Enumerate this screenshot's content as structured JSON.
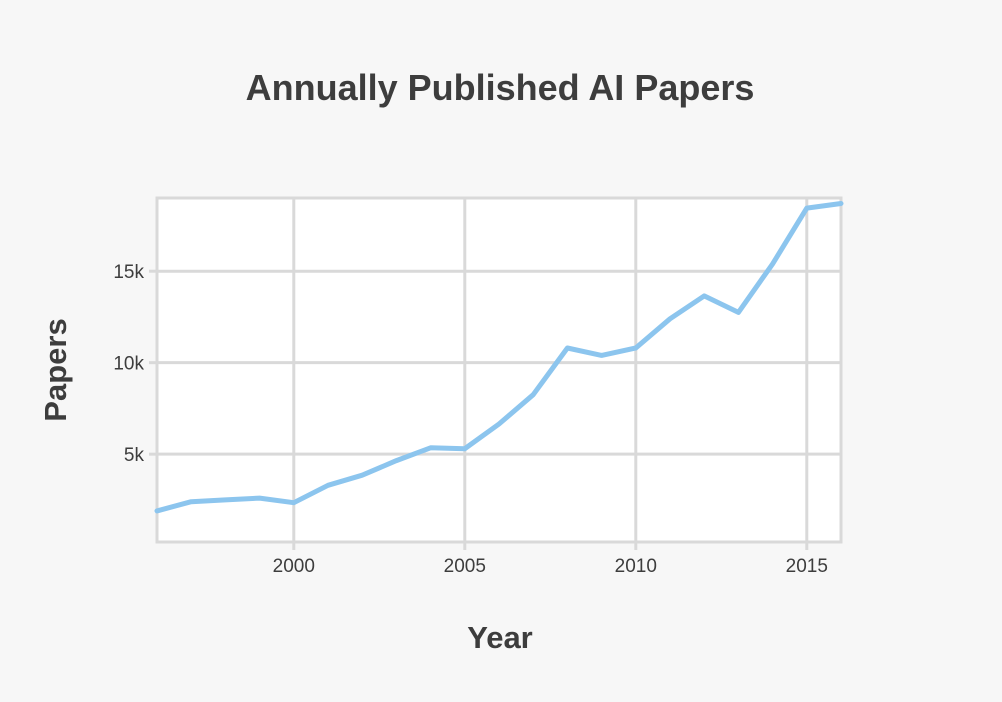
{
  "chart_data": {
    "type": "line",
    "title": "Annually Published AI Papers",
    "xlabel": "Year",
    "ylabel": "Papers",
    "xlim": [
      1996,
      2016
    ],
    "ylim": [
      200,
      19000
    ],
    "x_ticks": [
      2000,
      2005,
      2010,
      2015
    ],
    "x_tick_labels": [
      "2000",
      "2005",
      "2010",
      "2015"
    ],
    "y_ticks": [
      5000,
      10000,
      15000
    ],
    "y_tick_labels": [
      "5k",
      "10k",
      "15k"
    ],
    "grid": true,
    "legend": false,
    "line_color": "#8cc5ee",
    "series": [
      {
        "x": [
          1996,
          1997,
          1998,
          1999,
          2000,
          2001,
          2002,
          2003,
          2004,
          2005,
          2006,
          2007,
          2008,
          2009,
          2010,
          2011,
          2012,
          2013,
          2014,
          2015,
          2016
        ],
        "values": [
          1900,
          2400,
          2500,
          2600,
          2350,
          3300,
          3850,
          4650,
          5350,
          5300,
          6650,
          8250,
          10800,
          10400,
          10800,
          12400,
          13650,
          12750,
          15400,
          18450,
          18700
        ]
      }
    ]
  }
}
